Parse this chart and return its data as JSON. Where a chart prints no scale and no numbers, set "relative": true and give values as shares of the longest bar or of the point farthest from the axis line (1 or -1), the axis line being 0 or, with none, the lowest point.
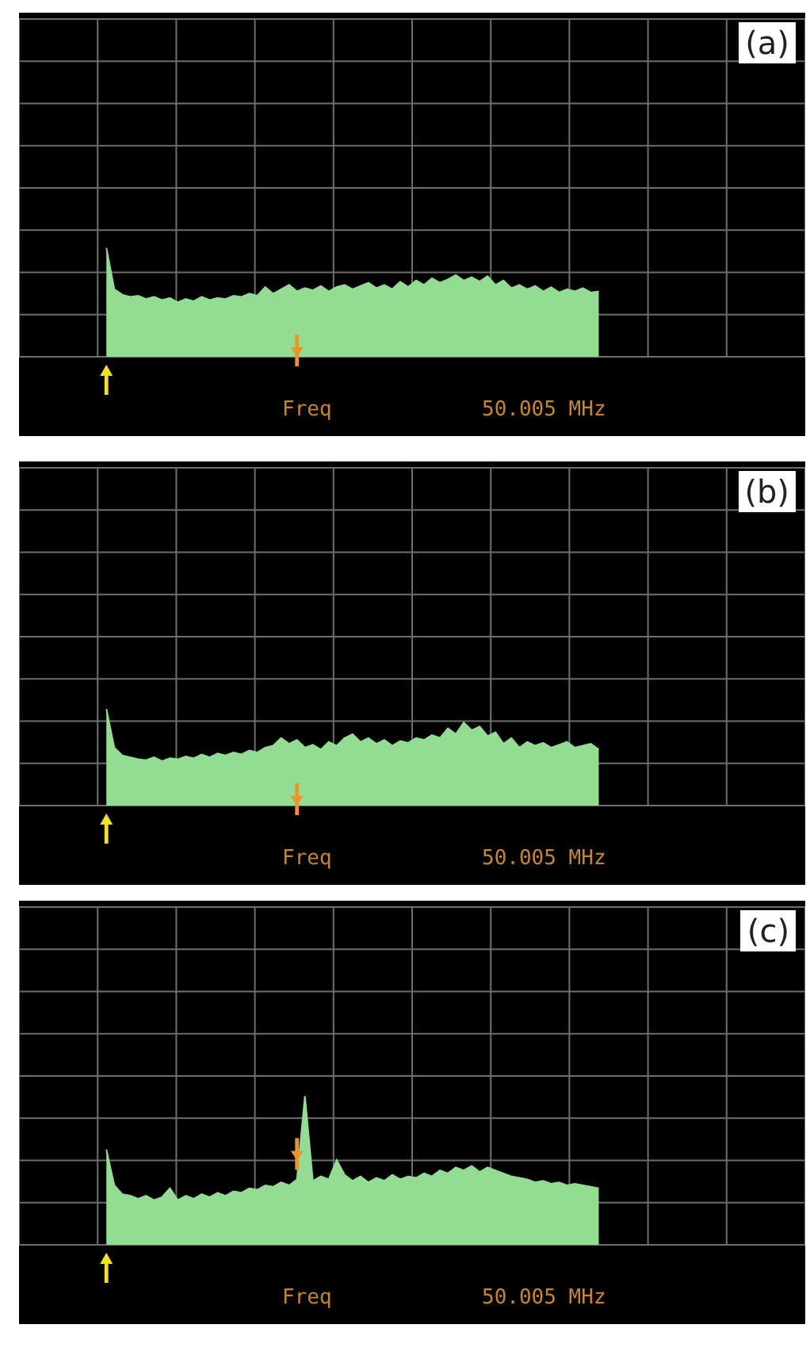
{
  "chart_data": [
    {
      "type": "area",
      "title": "(a)",
      "relative": true,
      "grid": true,
      "color": "#92dd92",
      "annotations": [
        "Freq",
        "50.005 MHz"
      ],
      "categories": [
        null,
        null,
        null,
        null,
        null,
        null,
        null,
        null,
        null,
        null,
        null,
        null,
        null,
        null,
        null,
        null,
        null,
        null,
        null,
        null,
        null,
        null,
        null,
        null,
        null,
        null,
        null,
        null,
        null,
        null,
        null,
        null,
        null,
        null,
        null,
        null,
        null,
        null,
        null,
        null,
        null,
        null,
        null,
        null,
        null,
        null,
        null,
        null,
        null,
        null,
        null,
        null,
        null,
        null,
        null,
        null,
        null,
        null,
        null,
        null,
        null,
        null,
        null,
        null,
        null,
        null,
        null,
        null,
        null,
        null,
        null,
        null,
        null,
        null,
        null,
        null,
        null,
        null,
        null,
        null,
        null,
        null,
        null,
        null,
        null,
        null,
        null,
        null,
        null,
        null,
        null,
        null,
        null,
        null,
        null,
        null,
        null,
        null,
        null,
        null
      ],
      "values": [
        null,
        null,
        null,
        null,
        null,
        null,
        null,
        null,
        null,
        null,
        null,
        1.0,
        0.62,
        0.57,
        0.55,
        0.56,
        0.53,
        0.55,
        0.52,
        0.54,
        0.5,
        0.53,
        0.51,
        0.55,
        0.52,
        0.54,
        0.53,
        0.56,
        0.55,
        0.58,
        0.56,
        0.64,
        0.58,
        0.62,
        0.66,
        0.6,
        0.63,
        0.61,
        0.65,
        0.6,
        0.64,
        0.66,
        0.62,
        0.65,
        0.68,
        0.63,
        0.66,
        0.62,
        0.69,
        0.64,
        0.7,
        0.66,
        0.72,
        0.68,
        0.71,
        0.75,
        0.7,
        0.73,
        0.69,
        0.74,
        0.66,
        0.7,
        0.63,
        0.66,
        0.62,
        0.65,
        0.6,
        0.64,
        0.59,
        0.62,
        0.6,
        0.63,
        0.59,
        0.6,
        null,
        null,
        null,
        null,
        null,
        null,
        null,
        null,
        null,
        null,
        null,
        null,
        null,
        null,
        null,
        null,
        null,
        null,
        null,
        null,
        null,
        null,
        null,
        null,
        null,
        null
      ]
    },
    {
      "type": "area",
      "title": "(b)",
      "relative": true,
      "grid": true,
      "color": "#92dd92",
      "annotations": [
        "Freq",
        "50.005 MHz"
      ],
      "categories": [
        null,
        null,
        null,
        null,
        null,
        null,
        null,
        null,
        null,
        null,
        null,
        null,
        null,
        null,
        null,
        null,
        null,
        null,
        null,
        null,
        null,
        null,
        null,
        null,
        null,
        null,
        null,
        null,
        null,
        null,
        null,
        null,
        null,
        null,
        null,
        null,
        null,
        null,
        null,
        null,
        null,
        null,
        null,
        null,
        null,
        null,
        null,
        null,
        null,
        null,
        null,
        null,
        null,
        null,
        null,
        null,
        null,
        null,
        null,
        null,
        null,
        null,
        null,
        null,
        null,
        null,
        null,
        null,
        null,
        null,
        null,
        null,
        null,
        null,
        null,
        null,
        null,
        null,
        null,
        null,
        null,
        null,
        null,
        null,
        null,
        null,
        null,
        null,
        null,
        null,
        null,
        null,
        null,
        null,
        null,
        null,
        null,
        null,
        null,
        null
      ],
      "values": [
        null,
        null,
        null,
        null,
        null,
        null,
        null,
        null,
        null,
        null,
        null,
        1.0,
        0.6,
        0.52,
        0.5,
        0.48,
        0.47,
        0.5,
        0.46,
        0.49,
        0.48,
        0.51,
        0.49,
        0.53,
        0.5,
        0.54,
        0.52,
        0.55,
        0.53,
        0.57,
        0.55,
        0.6,
        0.62,
        0.7,
        0.64,
        0.68,
        0.6,
        0.63,
        0.58,
        0.66,
        0.62,
        0.7,
        0.74,
        0.66,
        0.7,
        0.64,
        0.68,
        0.62,
        0.67,
        0.65,
        0.7,
        0.68,
        0.73,
        0.7,
        0.8,
        0.74,
        0.86,
        0.78,
        0.82,
        0.72,
        0.76,
        0.64,
        0.7,
        0.6,
        0.66,
        0.62,
        0.65,
        0.6,
        0.63,
        0.66,
        0.6,
        0.62,
        0.64,
        0.58,
        null,
        null,
        null,
        null,
        null,
        null,
        null,
        null,
        null,
        null,
        null,
        null,
        null,
        null,
        null,
        null,
        null,
        null,
        null,
        null,
        null,
        null,
        null,
        null,
        null,
        null
      ]
    },
    {
      "type": "area",
      "title": "(c)",
      "relative": true,
      "grid": true,
      "color": "#92dd92",
      "annotations": [
        "Freq",
        "50.005 MHz"
      ],
      "categories": [
        null,
        null,
        null,
        null,
        null,
        null,
        null,
        null,
        null,
        null,
        null,
        null,
        null,
        null,
        null,
        null,
        null,
        null,
        null,
        null,
        null,
        null,
        null,
        null,
        null,
        null,
        null,
        null,
        null,
        null,
        null,
        null,
        null,
        null,
        null,
        null,
        null,
        null,
        null,
        null,
        null,
        null,
        null,
        null,
        null,
        null,
        null,
        null,
        null,
        null,
        null,
        null,
        null,
        null,
        null,
        null,
        null,
        null,
        null,
        null,
        null,
        null,
        null,
        null,
        null,
        null,
        null,
        null,
        null,
        null,
        null,
        null,
        null,
        null,
        null,
        null,
        null,
        null,
        null,
        null,
        null,
        null,
        null,
        null,
        null,
        null,
        null,
        null,
        null,
        null,
        null,
        null,
        null,
        null,
        null,
        null,
        null,
        null,
        null,
        null
      ],
      "values": [
        null,
        null,
        null,
        null,
        null,
        null,
        null,
        null,
        null,
        null,
        null,
        0.64,
        0.4,
        0.34,
        0.33,
        0.31,
        0.33,
        0.3,
        0.32,
        0.38,
        0.3,
        0.33,
        0.31,
        0.34,
        0.32,
        0.35,
        0.33,
        0.36,
        0.35,
        0.38,
        0.37,
        0.4,
        0.39,
        0.42,
        0.4,
        0.44,
        1.0,
        0.43,
        0.46,
        0.44,
        0.57,
        0.47,
        0.43,
        0.46,
        0.42,
        0.45,
        0.43,
        0.47,
        0.44,
        0.46,
        0.45,
        0.48,
        0.46,
        0.5,
        0.48,
        0.52,
        0.5,
        0.53,
        0.49,
        0.52,
        0.5,
        0.48,
        0.46,
        0.45,
        0.44,
        0.42,
        0.43,
        0.41,
        0.42,
        0.4,
        0.41,
        0.4,
        0.39,
        0.38,
        null,
        null,
        null,
        null,
        null,
        null,
        null,
        null,
        null,
        null,
        null,
        null,
        null,
        null,
        null,
        null,
        null,
        null,
        null,
        null,
        null,
        null,
        null,
        null,
        null,
        null
      ]
    }
  ]
}
